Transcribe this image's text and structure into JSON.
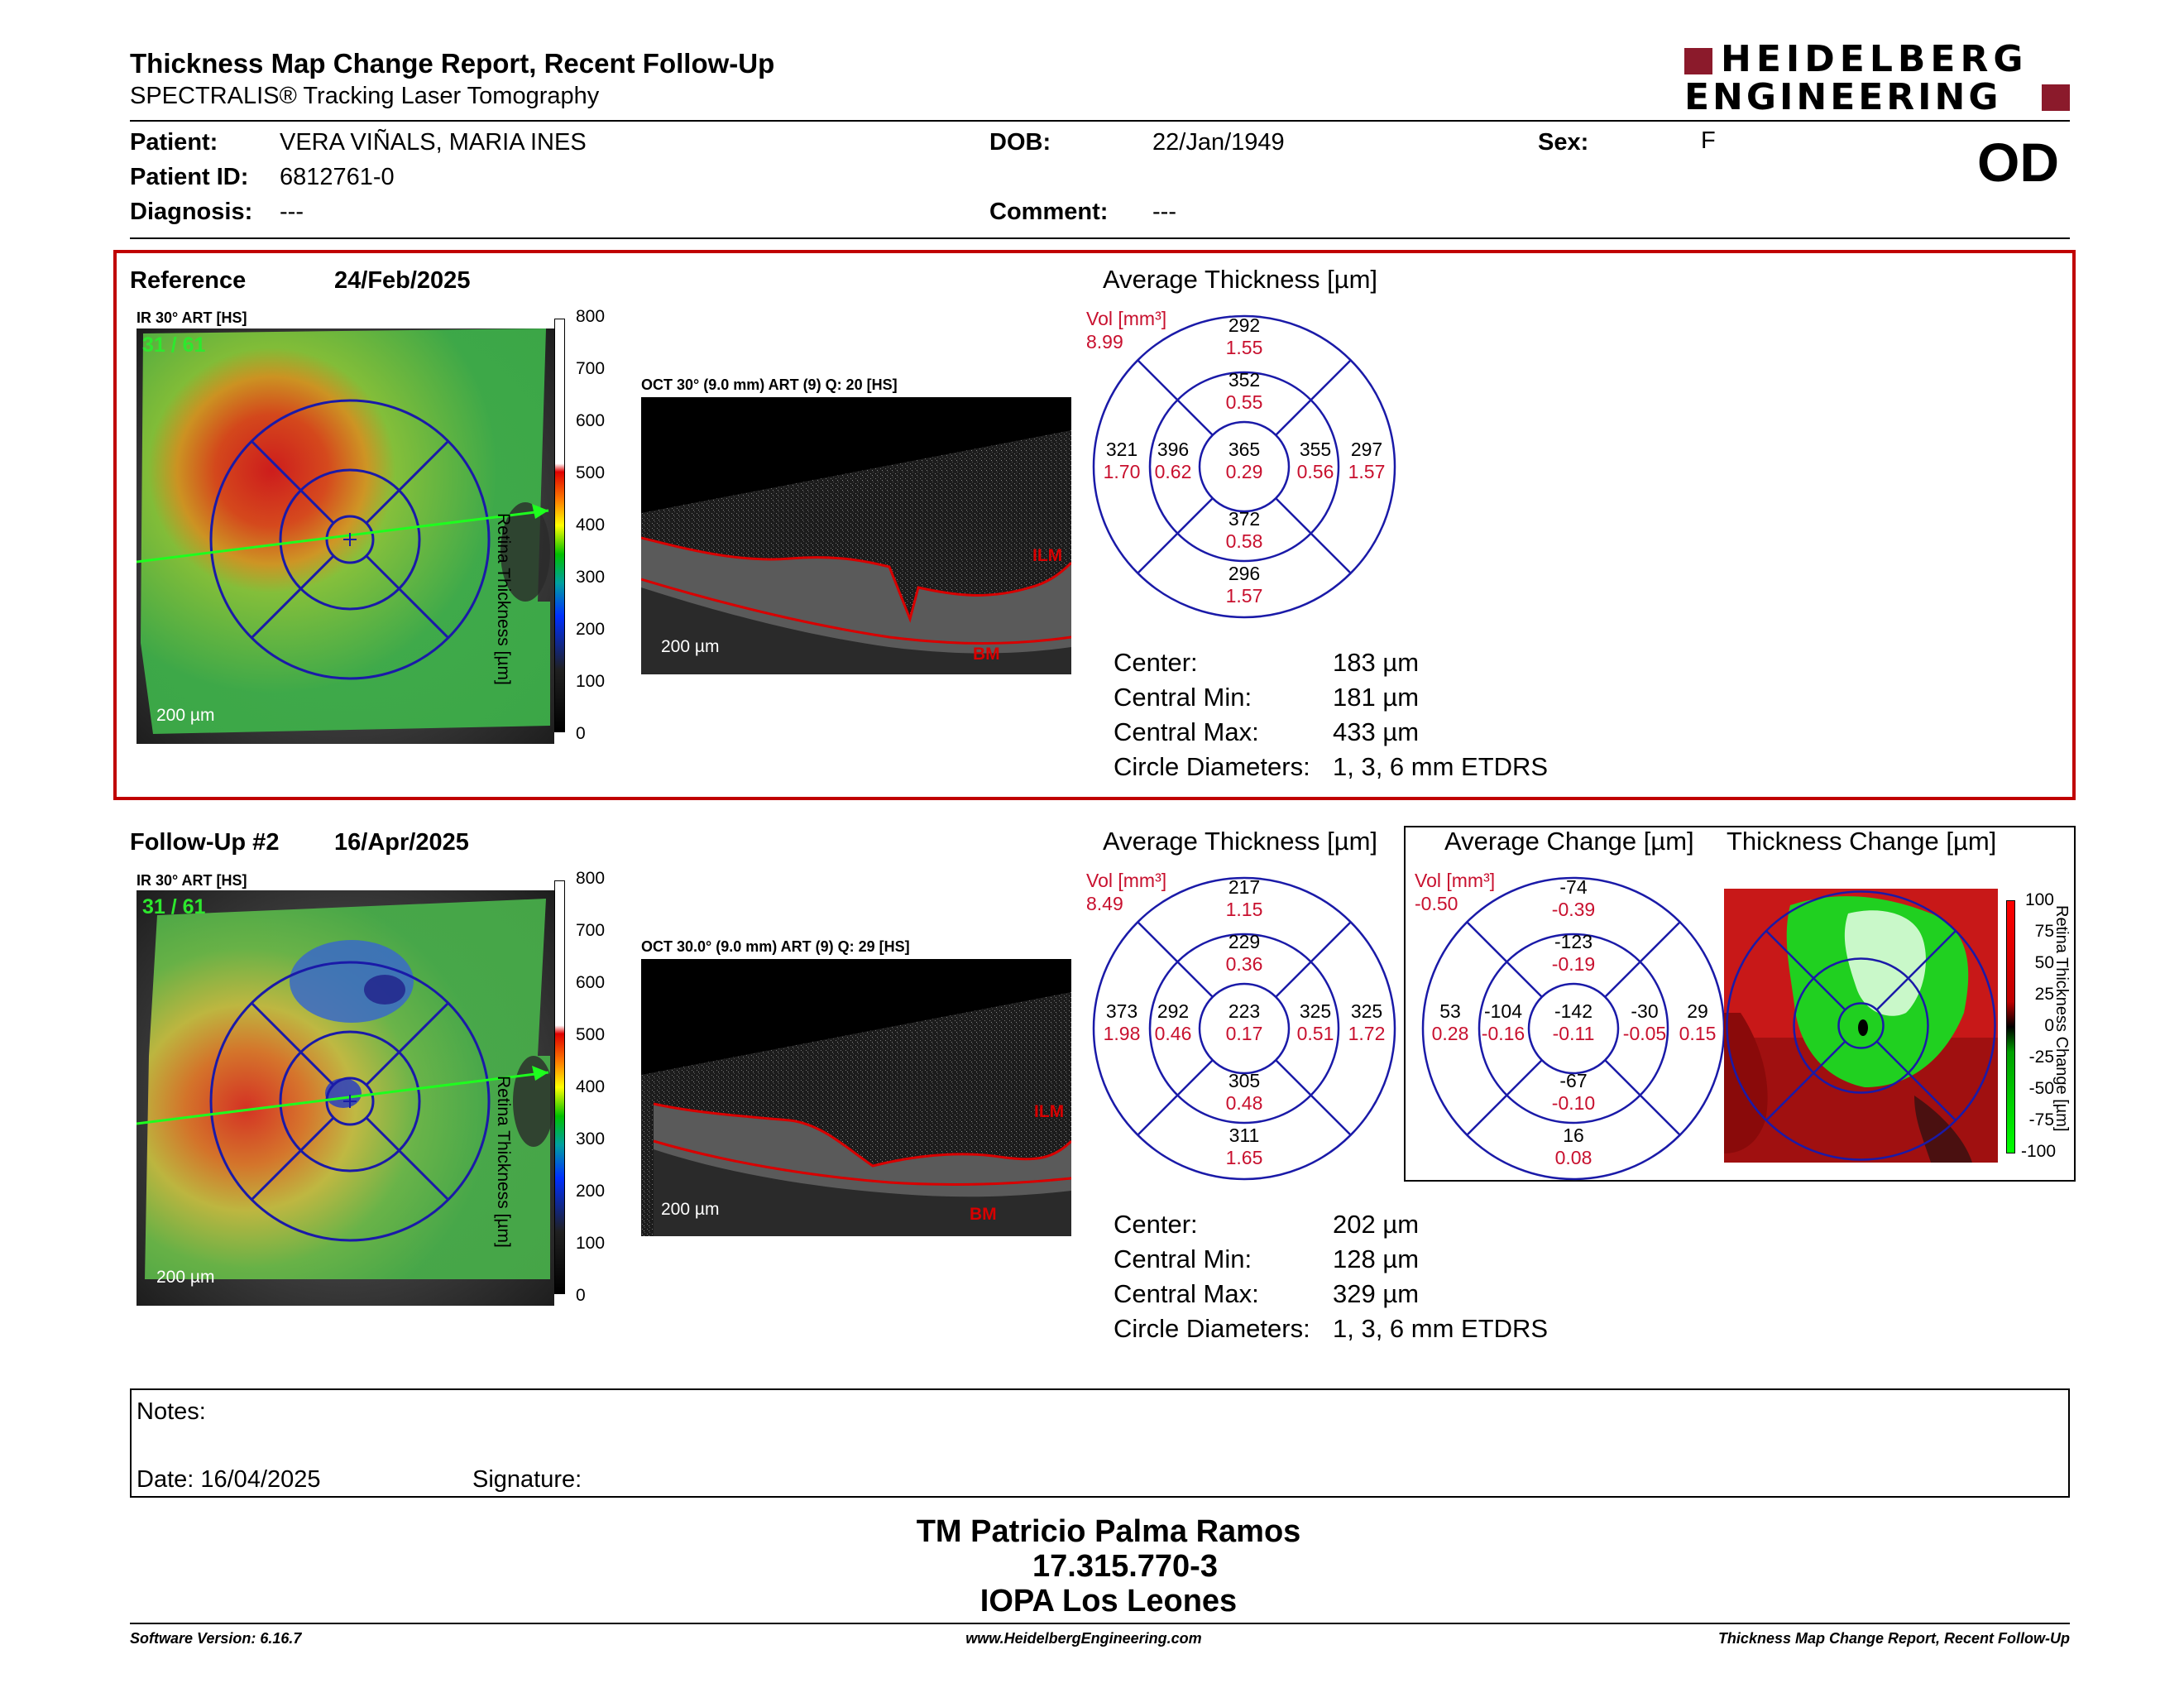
{
  "header": {
    "title": "Thickness Map Change Report, Recent Follow-Up",
    "subtitle": "SPECTRALIS® Tracking Laser Tomography",
    "logo_line1": "HEIDELBERG",
    "logo_line2": "ENGINEERING"
  },
  "patient": {
    "patient_label": "Patient:",
    "patient_value": "VERA VIÑALS, MARIA INES",
    "id_label": "Patient ID:",
    "id_value": "6812761-0",
    "diagnosis_label": "Diagnosis:",
    "diagnosis_value": "---",
    "dob_label": "DOB:",
    "dob_value": "22/Jan/1949",
    "comment_label": "Comment:",
    "comment_value": "---",
    "sex_label": "Sex:",
    "sex_value": "F",
    "eye": "OD"
  },
  "reference": {
    "label": "Reference",
    "date": "24/Feb/2025",
    "ir_label": "IR 30° ART [HS]",
    "frame_counter": "31 / 61",
    "scalebar": "200 µm",
    "scale_ticks": [
      "800",
      "700",
      "600",
      "500",
      "400",
      "300",
      "200",
      "100",
      "0"
    ],
    "scale_title": "Retina Thickness [µm]",
    "oct_label": "OCT 30° (9.0 mm) ART (9) Q: 20 [HS]",
    "oct_scalebar": "200 µm",
    "ilm": "ILM",
    "bm": "BM",
    "avg_title": "Average Thickness [µm]",
    "vol_label": "Vol [mm³]",
    "vol_value": "8.99",
    "etdrs": {
      "outer_top": [
        "292",
        "1.55"
      ],
      "inner_top": [
        "352",
        "0.55"
      ],
      "outer_left": [
        "321",
        "1.70"
      ],
      "inner_left": [
        "396",
        "0.62"
      ],
      "center": [
        "365",
        "0.29"
      ],
      "inner_right": [
        "355",
        "0.56"
      ],
      "outer_right": [
        "297",
        "1.57"
      ],
      "inner_bottom": [
        "372",
        "0.58"
      ],
      "outer_bottom": [
        "296",
        "1.57"
      ]
    },
    "stats": [
      {
        "label": "Center:",
        "value": "183 µm"
      },
      {
        "label": "Central Min:",
        "value": "181 µm"
      },
      {
        "label": "Central Max:",
        "value": "433 µm"
      },
      {
        "label": "Circle Diameters:",
        "value": "1, 3, 6 mm ETDRS"
      }
    ]
  },
  "followup": {
    "label": "Follow-Up #2",
    "date": "16/Apr/2025",
    "ir_label": "IR 30° ART [HS]",
    "frame_counter": "31 / 61",
    "scalebar": "200 µm",
    "scale_ticks": [
      "800",
      "700",
      "600",
      "500",
      "400",
      "300",
      "200",
      "100",
      "0"
    ],
    "scale_title": "Retina Thickness [µm]",
    "oct_label": "OCT 30.0° (9.0 mm) ART (9) Q: 29 [HS]",
    "oct_scalebar": "200 µm",
    "ilm": "ILM",
    "bm": "BM",
    "avg_title": "Average Thickness [µm]",
    "vol_label": "Vol [mm³]",
    "vol_value": "8.49",
    "etdrs": {
      "outer_top": [
        "217",
        "1.15"
      ],
      "inner_top": [
        "229",
        "0.36"
      ],
      "outer_left": [
        "373",
        "1.98"
      ],
      "inner_left": [
        "292",
        "0.46"
      ],
      "center": [
        "223",
        "0.17"
      ],
      "inner_right": [
        "325",
        "0.51"
      ],
      "outer_right": [
        "325",
        "1.72"
      ],
      "inner_bottom": [
        "305",
        "0.48"
      ],
      "outer_bottom": [
        "311",
        "1.65"
      ]
    },
    "change_title": "Average Change [µm]",
    "change_vol_label": "Vol [mm³]",
    "change_vol_value": "-0.50",
    "change_etdrs": {
      "outer_top": [
        "-74",
        "-0.39"
      ],
      "inner_top": [
        "-123",
        "-0.19"
      ],
      "outer_left": [
        "53",
        "0.28"
      ],
      "inner_left": [
        "-104",
        "-0.16"
      ],
      "center": [
        "-142",
        "-0.11"
      ],
      "inner_right": [
        "-30",
        "-0.05"
      ],
      "outer_right": [
        "29",
        "0.15"
      ],
      "inner_bottom": [
        "-67",
        "-0.10"
      ],
      "outer_bottom": [
        "16",
        "0.08"
      ]
    },
    "tc_title": "Thickness Change [µm]",
    "tc_ticks": [
      "100",
      "75",
      "50",
      "25",
      "0",
      "-25",
      "-50",
      "-75",
      "-100"
    ],
    "tc_scale_title": "Retina Thickness Change [µm]",
    "stats": [
      {
        "label": "Center:",
        "value": "202 µm"
      },
      {
        "label": "Central Min:",
        "value": "128 µm"
      },
      {
        "label": "Central Max:",
        "value": "329 µm"
      },
      {
        "label": "Circle Diameters:",
        "value": "1, 3, 6 mm ETDRS"
      }
    ]
  },
  "notes": {
    "notes_label": "Notes:",
    "date_label": "Date: 16/04/2025",
    "signature_label": "Signature:"
  },
  "signatory": {
    "name": "TM Patricio Palma Ramos",
    "id": "17.315.770-3",
    "org": "IOPA Los Leones"
  },
  "footer": {
    "software": "Software Version: 6.16.7",
    "website": "www.HeidelbergEngineering.com",
    "report": "Thickness Map Change Report, Recent Follow-Up"
  },
  "colors": {
    "brand_red": "#8b1a2b",
    "reference_frame": "#c00000",
    "etdrs_blue": "#1a1aa8",
    "value_red": "#c8102e"
  }
}
